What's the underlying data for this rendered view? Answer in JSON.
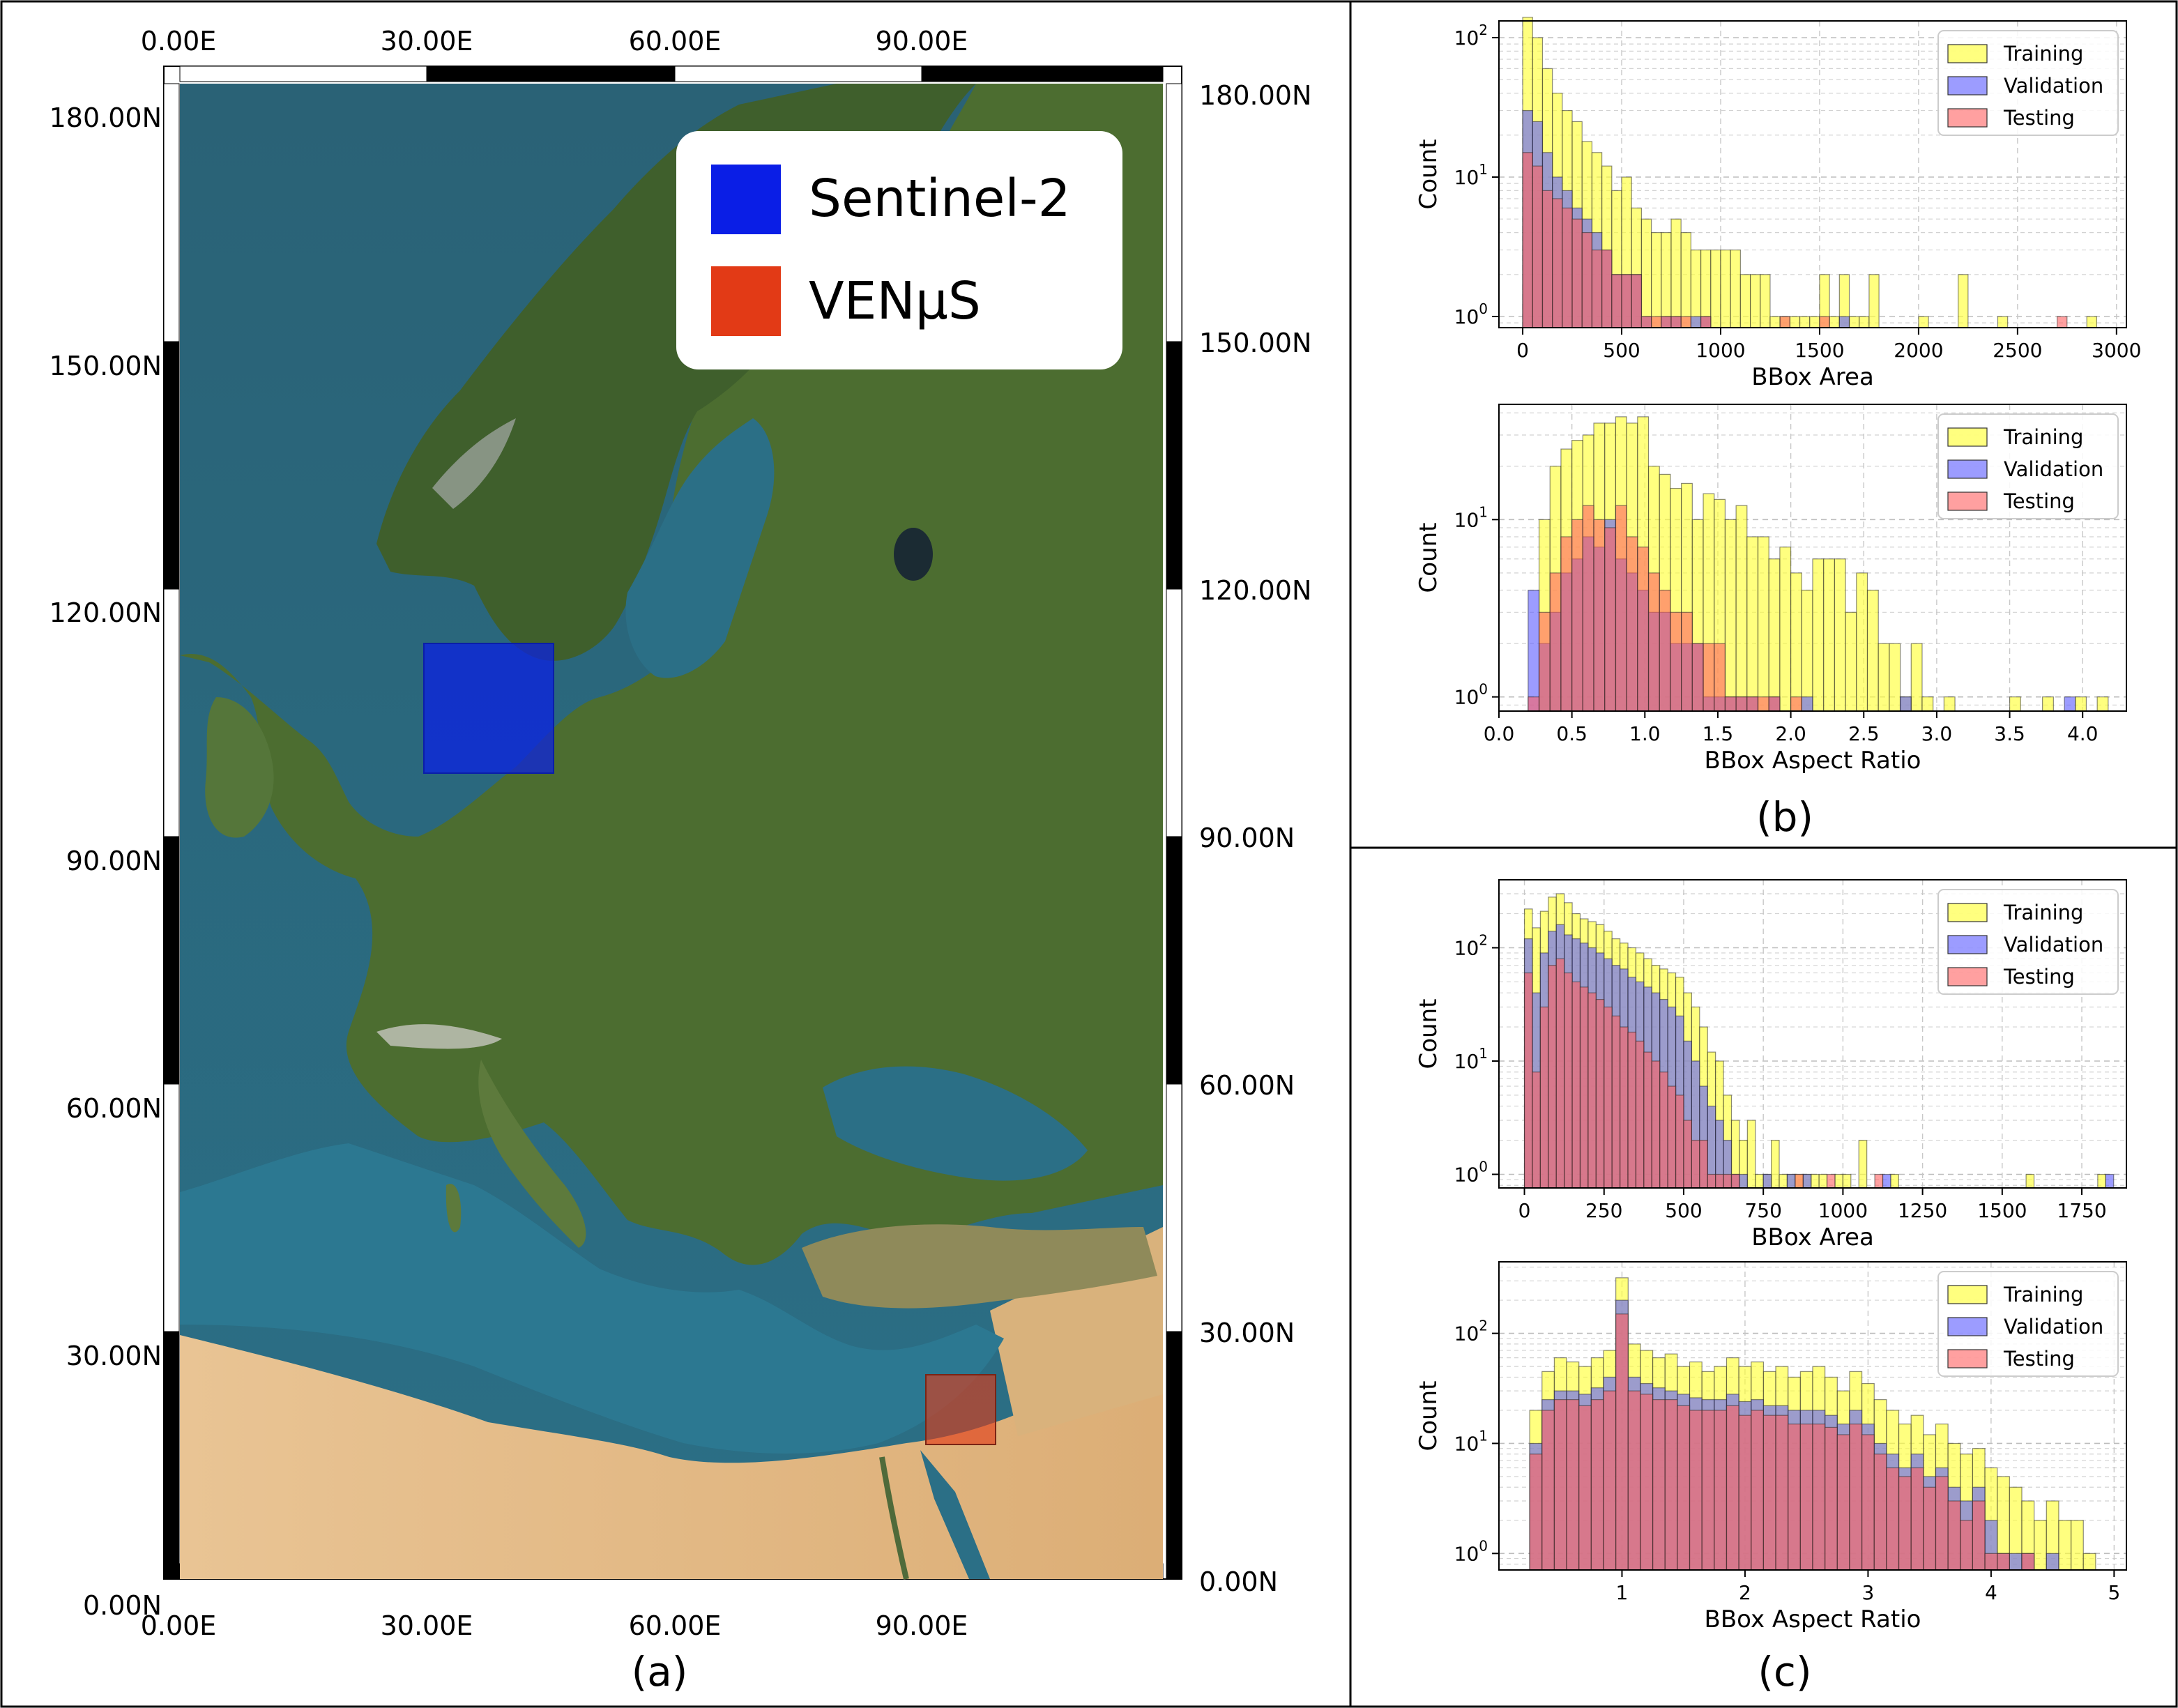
{
  "colors": {
    "training": "#ffff3a",
    "validation": "#5a5aff",
    "testing": "#ff6060",
    "overlap_orange": "#ff6a1c",
    "overlap_crimson": "#b5183f",
    "sentinel": "#0a1ee6",
    "venus": "#e23a16"
  },
  "panels": {
    "a_label": "(a)",
    "b_label": "(b)",
    "c_label": "(c)"
  },
  "map": {
    "x_ticks": [
      "0.00E",
      "30.00E",
      "60.00E",
      "90.00E"
    ],
    "y_ticks": [
      "0.00N",
      "30.00N",
      "60.00N",
      "90.00N",
      "120.00N",
      "150.00N",
      "180.00N"
    ],
    "legend": [
      {
        "label": "Sentinel-2",
        "color_key": "sentinel"
      },
      {
        "label": "VENμS",
        "color_key": "venus"
      }
    ]
  },
  "chart_data": [
    {
      "id": "b_area",
      "type": "bar",
      "scale": "log",
      "xlabel": "BBox Area",
      "ylabel": "Count",
      "xlim": [
        -120,
        3050
      ],
      "ylim_log": [
        -0.08,
        2.12
      ],
      "xticks": [
        0,
        500,
        1000,
        1500,
        2000,
        2500,
        3000
      ],
      "xtick_labels": [
        "0",
        "500",
        "1000",
        "1500",
        "2000",
        "2500",
        "3000"
      ],
      "bin_edges": [
        0,
        50,
        100,
        150,
        200,
        250,
        300,
        350,
        400,
        450,
        500,
        550,
        600,
        650,
        700,
        750,
        800,
        850,
        900,
        950,
        1000,
        1050,
        1100,
        1150,
        1200,
        1250,
        1300,
        1350,
        1400,
        1450,
        1500,
        1550,
        1600,
        1650,
        1700,
        1750,
        1800,
        1850,
        1900,
        1950,
        2000,
        2050,
        2100,
        2150,
        2200,
        2250,
        2300,
        2350,
        2400,
        2450,
        2500,
        2550,
        2600,
        2650,
        2700,
        2750,
        2800,
        2850,
        2900
      ],
      "series": [
        {
          "name": "Training",
          "color_key": "training",
          "values": [
            140,
            100,
            60,
            40,
            30,
            25,
            18,
            15,
            12,
            8,
            10,
            6,
            5,
            4,
            4,
            5,
            4,
            3,
            3,
            3,
            3,
            3,
            2,
            2,
            2,
            1,
            1,
            1,
            1,
            1,
            2,
            1,
            2,
            1,
            1,
            2,
            0,
            0,
            0,
            0,
            1,
            0,
            0,
            0,
            2,
            0,
            0,
            0,
            1,
            0,
            0,
            0,
            0,
            0,
            0,
            0,
            0,
            1
          ]
        },
        {
          "name": "Validation",
          "color_key": "validation",
          "values": [
            30,
            25,
            15,
            10,
            8,
            6,
            5,
            4,
            3,
            2,
            2,
            2,
            1,
            0,
            1,
            1,
            0,
            1,
            1,
            0,
            0,
            0,
            0,
            0,
            0,
            0,
            0,
            0,
            0,
            0,
            0,
            0,
            1,
            0,
            0,
            0,
            0,
            0,
            0,
            0,
            0,
            0,
            0,
            0,
            0,
            0,
            0,
            0,
            0,
            0,
            0,
            0,
            0,
            0,
            0,
            0,
            0,
            0
          ]
        },
        {
          "name": "Testing",
          "color_key": "testing",
          "values": [
            15,
            12,
            8,
            7,
            6,
            5,
            4,
            3,
            3,
            2,
            2,
            2,
            1,
            1,
            1,
            1,
            1,
            0,
            1,
            0,
            0,
            0,
            0,
            0,
            0,
            0,
            1,
            0,
            0,
            0,
            1,
            0,
            0,
            0,
            0,
            0,
            0,
            0,
            0,
            0,
            0,
            0,
            0,
            0,
            0,
            0,
            0,
            0,
            0,
            0,
            0,
            0,
            0,
            0,
            1,
            0,
            0,
            0
          ]
        }
      ]
    },
    {
      "id": "b_ratio",
      "type": "bar",
      "scale": "log",
      "xlabel": "BBox Aspect Ratio",
      "ylabel": "Count",
      "xlim": [
        0,
        4.3
      ],
      "ylim_log": [
        -0.08,
        1.65
      ],
      "xticks": [
        0.0,
        0.5,
        1.0,
        1.5,
        2.0,
        2.5,
        3.0,
        3.5,
        4.0
      ],
      "xtick_labels": [
        "0.0",
        "0.5",
        "1.0",
        "1.5",
        "2.0",
        "2.5",
        "3.0",
        "3.5",
        "4.0"
      ],
      "bin_edges": [
        0.2,
        0.275,
        0.35,
        0.425,
        0.5,
        0.575,
        0.65,
        0.725,
        0.8,
        0.875,
        0.95,
        1.025,
        1.1,
        1.175,
        1.25,
        1.325,
        1.4,
        1.475,
        1.55,
        1.625,
        1.7,
        1.775,
        1.85,
        1.925,
        2.0,
        2.075,
        2.15,
        2.225,
        2.3,
        2.375,
        2.45,
        2.525,
        2.6,
        2.675,
        2.75,
        2.825,
        2.9,
        2.975,
        3.05,
        3.125,
        3.2,
        3.275,
        3.35,
        3.425,
        3.5,
        3.575,
        3.65,
        3.725,
        3.8,
        3.875,
        3.95,
        4.025,
        4.1,
        4.175
      ],
      "series": [
        {
          "name": "Training",
          "color_key": "training",
          "values": [
            0,
            10,
            20,
            25,
            28,
            30,
            35,
            35,
            38,
            35,
            38,
            20,
            18,
            15,
            16,
            10,
            14,
            13,
            10,
            12,
            8,
            8,
            6,
            7,
            5,
            4,
            6,
            6,
            6,
            3,
            5,
            4,
            2,
            2,
            1,
            2,
            1,
            0,
            1,
            0,
            0,
            0,
            0,
            0,
            1,
            0,
            0,
            1,
            0,
            0,
            1,
            0,
            1,
            0
          ]
        },
        {
          "name": "Validation",
          "color_key": "validation",
          "values": [
            4,
            2,
            3,
            5,
            6,
            8,
            7,
            10,
            6,
            5,
            4,
            3,
            3,
            2,
            2,
            2,
            1,
            1,
            1,
            1,
            1,
            0,
            1,
            0,
            0,
            1,
            0,
            0,
            0,
            0,
            0,
            0,
            0,
            0,
            1,
            0,
            0,
            0,
            0,
            0,
            0,
            0,
            0,
            0,
            0,
            0,
            0,
            0,
            0,
            1,
            0,
            0,
            0,
            0
          ]
        },
        {
          "name": "Testing",
          "color_key": "testing",
          "values": [
            1,
            3,
            5,
            8,
            10,
            12,
            10,
            9,
            12,
            8,
            7,
            5,
            4,
            3,
            3,
            2,
            2,
            2,
            1,
            1,
            1,
            1,
            1,
            0,
            1,
            0,
            0,
            0,
            0,
            0,
            0,
            0,
            0,
            0,
            0,
            0,
            0,
            0,
            0,
            0,
            0,
            0,
            0,
            0,
            0,
            0,
            0,
            0,
            0,
            0,
            0,
            0,
            0,
            0
          ]
        }
      ]
    },
    {
      "id": "c_area",
      "type": "bar",
      "scale": "log",
      "xlabel": "BBox Area",
      "ylabel": "Count",
      "xlim": [
        -80,
        1890
      ],
      "ylim_log": [
        -0.12,
        2.6
      ],
      "xticks": [
        0,
        250,
        500,
        750,
        1000,
        1250,
        1500,
        1750
      ],
      "xtick_labels": [
        "0",
        "250",
        "500",
        "750",
        "1000",
        "1250",
        "1500",
        "1750"
      ],
      "bin_edges": [
        0,
        25,
        50,
        75,
        100,
        125,
        150,
        175,
        200,
        225,
        250,
        275,
        300,
        325,
        350,
        375,
        400,
        425,
        450,
        475,
        500,
        525,
        550,
        575,
        600,
        625,
        650,
        675,
        700,
        725,
        750,
        775,
        800,
        825,
        850,
        875,
        900,
        925,
        950,
        975,
        1000,
        1025,
        1050,
        1075,
        1100,
        1125,
        1150,
        1175,
        1200,
        1225,
        1250,
        1275,
        1300,
        1325,
        1350,
        1375,
        1400,
        1425,
        1450,
        1475,
        1500,
        1525,
        1550,
        1575,
        1600,
        1625,
        1650,
        1675,
        1700,
        1725,
        1750,
        1775,
        1800,
        1825,
        1850
      ],
      "series": [
        {
          "name": "Training",
          "color_key": "training",
          "values": [
            220,
            150,
            210,
            280,
            300,
            250,
            200,
            180,
            170,
            160,
            140,
            120,
            110,
            100,
            90,
            80,
            70,
            65,
            60,
            55,
            40,
            30,
            20,
            12,
            10,
            5,
            3,
            2,
            3,
            1,
            1,
            2,
            1,
            1,
            1,
            1,
            1,
            1,
            0,
            1,
            1,
            0,
            2,
            0,
            0,
            0,
            1,
            0,
            0,
            0,
            0,
            0,
            0,
            0,
            0,
            0,
            0,
            0,
            0,
            0,
            0,
            0,
            0,
            1,
            0,
            0,
            0,
            0,
            0,
            0,
            0,
            0,
            1,
            0
          ]
        },
        {
          "name": "Validation",
          "color_key": "validation",
          "values": [
            120,
            40,
            90,
            140,
            160,
            130,
            120,
            110,
            100,
            90,
            80,
            70,
            65,
            55,
            50,
            45,
            40,
            35,
            30,
            25,
            15,
            10,
            6,
            4,
            3,
            2,
            1,
            1,
            0,
            0,
            1,
            0,
            0,
            1,
            0,
            1,
            0,
            0,
            0,
            0,
            0,
            0,
            0,
            0,
            0,
            1,
            0,
            0,
            0,
            0,
            0,
            0,
            0,
            0,
            0,
            0,
            0,
            0,
            0,
            0,
            0,
            0,
            0,
            0,
            0,
            0,
            0,
            0,
            0,
            0,
            0,
            0,
            0,
            1
          ]
        },
        {
          "name": "Testing",
          "color_key": "testing",
          "values": [
            60,
            8,
            30,
            70,
            80,
            60,
            50,
            45,
            40,
            35,
            30,
            25,
            20,
            18,
            15,
            12,
            10,
            8,
            6,
            5,
            3,
            2,
            2,
            1,
            1,
            1,
            1,
            0,
            0,
            0,
            0,
            0,
            0,
            0,
            1,
            0,
            0,
            0,
            1,
            0,
            0,
            0,
            0,
            0,
            1,
            0,
            0,
            0,
            0,
            0,
            0,
            0,
            0,
            0,
            0,
            0,
            0,
            0,
            0,
            0,
            0,
            0,
            0,
            0,
            0,
            0,
            0,
            0,
            0,
            0,
            0,
            0,
            0,
            0
          ]
        }
      ]
    },
    {
      "id": "c_ratio",
      "type": "bar",
      "scale": "log",
      "xlabel": "BBox Aspect Ratio",
      "ylabel": "Count",
      "xlim": [
        0.0,
        5.1
      ],
      "ylim_log": [
        -0.15,
        2.65
      ],
      "xticks": [
        1,
        2,
        3,
        4,
        5
      ],
      "xtick_labels": [
        "1",
        "2",
        "3",
        "4",
        "5"
      ],
      "bin_edges": [
        0.25,
        0.35,
        0.45,
        0.55,
        0.65,
        0.75,
        0.85,
        0.95,
        1.05,
        1.15,
        1.25,
        1.35,
        1.45,
        1.55,
        1.65,
        1.75,
        1.85,
        1.95,
        2.05,
        2.15,
        2.25,
        2.35,
        2.45,
        2.55,
        2.65,
        2.75,
        2.85,
        2.95,
        3.05,
        3.15,
        3.25,
        3.35,
        3.45,
        3.55,
        3.65,
        3.75,
        3.85,
        3.95,
        4.05,
        4.15,
        4.25,
        4.35,
        4.45,
        4.55,
        4.65,
        4.75,
        4.85
      ],
      "series": [
        {
          "name": "Training",
          "color_key": "training",
          "values": [
            20,
            45,
            60,
            55,
            50,
            60,
            70,
            320,
            80,
            70,
            60,
            65,
            50,
            55,
            45,
            50,
            60,
            50,
            55,
            45,
            50,
            40,
            45,
            50,
            40,
            30,
            45,
            35,
            25,
            20,
            15,
            18,
            12,
            15,
            10,
            8,
            9,
            6,
            5,
            4,
            3,
            2,
            3,
            2,
            2,
            1,
            2
          ]
        },
        {
          "name": "Validation",
          "color_key": "validation",
          "values": [
            10,
            25,
            30,
            30,
            28,
            32,
            40,
            200,
            40,
            35,
            32,
            30,
            28,
            26,
            25,
            25,
            28,
            24,
            25,
            22,
            22,
            20,
            20,
            20,
            18,
            15,
            20,
            15,
            10,
            8,
            6,
            8,
            5,
            6,
            4,
            3,
            4,
            2,
            1,
            1,
            1,
            0,
            1,
            0,
            0,
            0,
            0
          ]
        },
        {
          "name": "Testing",
          "color_key": "testing",
          "values": [
            8,
            20,
            25,
            25,
            22,
            25,
            30,
            150,
            30,
            28,
            25,
            25,
            22,
            20,
            20,
            20,
            22,
            18,
            20,
            18,
            18,
            15,
            15,
            15,
            14,
            12,
            15,
            12,
            8,
            6,
            5,
            6,
            4,
            5,
            3,
            2,
            3,
            1,
            1,
            0,
            1,
            0,
            0,
            0,
            0,
            0,
            0
          ]
        }
      ]
    }
  ]
}
